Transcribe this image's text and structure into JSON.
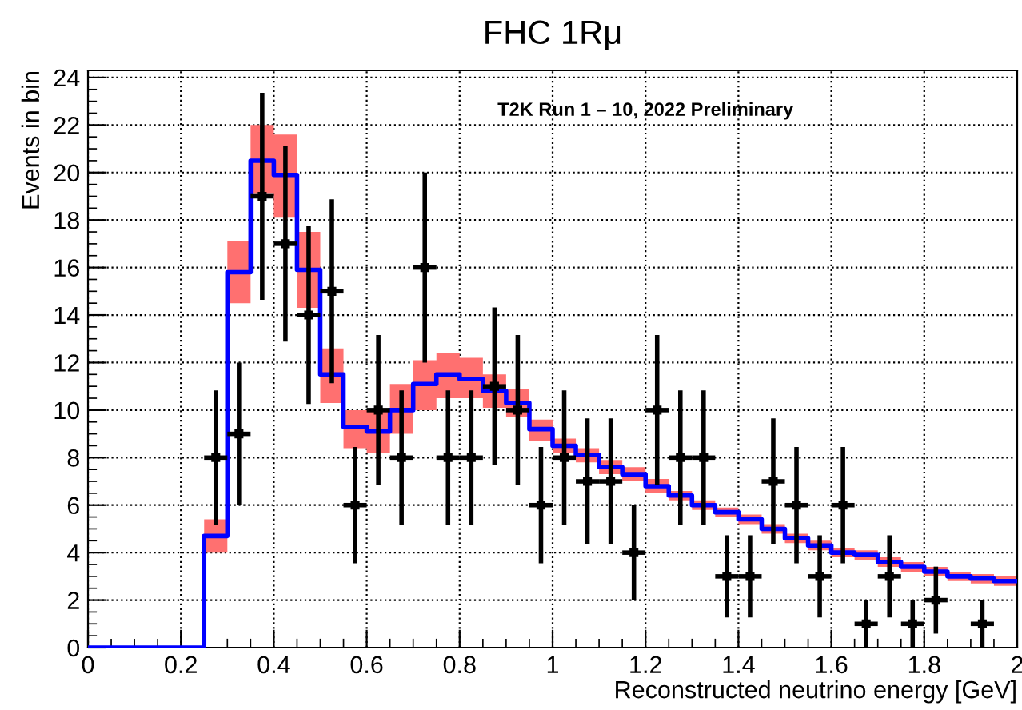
{
  "chart_data": {
    "type": "step",
    "title": "FHC 1Rμ",
    "xlabel": "Reconstructed neutrino energy [GeV]",
    "ylabel": "Events in bin",
    "annotations": [
      "T2K Run 1 – 10, 2022 Preliminary"
    ],
    "series": [
      {
        "color": "#0000ff",
        "x": [
          0,
          0.05,
          0.1,
          0.15,
          0.2,
          0.25,
          0.3,
          0.35,
          0.4,
          0.45,
          0.5,
          0.55,
          0.6,
          0.65,
          0.7,
          0.75,
          0.8,
          0.85,
          0.9,
          0.95,
          1,
          1.05,
          1.1,
          1.15,
          1.2,
          1.25,
          1.3,
          1.35,
          1.4,
          1.45,
          1.5,
          1.55,
          1.6,
          1.65,
          1.7,
          1.75,
          1.8,
          1.85,
          1.9,
          1.95,
          2
        ],
        "values": [
          0,
          0,
          0,
          0,
          0,
          4.7,
          15.8,
          20.5,
          19.9,
          15.9,
          11.5,
          9.3,
          9.1,
          10.0,
          11.1,
          11.5,
          11.3,
          10.8,
          10.3,
          9.2,
          8.5,
          8.1,
          7.6,
          7.3,
          6.8,
          6.4,
          6.0,
          5.7,
          5.4,
          5.0,
          4.6,
          4.3,
          4.0,
          3.9,
          3.6,
          3.4,
          3.2,
          3.0,
          2.9,
          2.8,
          2.8
        ],
        "lower": [
          null,
          null,
          null,
          null,
          null,
          4.0,
          14.5,
          19.1,
          18.1,
          14.3,
          10.3,
          8.4,
          8.2,
          9.0,
          10.0,
          10.5,
          10.5,
          10.1,
          9.7,
          8.7,
          8.2,
          7.8,
          7.3,
          7.0,
          6.5,
          6.2,
          5.8,
          5.5,
          5.2,
          4.8,
          4.4,
          4.1,
          3.8,
          3.7,
          3.4,
          3.2,
          3.0,
          2.8,
          2.7,
          2.6,
          2.6
        ],
        "upper": [
          null,
          null,
          null,
          null,
          null,
          5.4,
          17.1,
          22.0,
          21.6,
          17.5,
          12.6,
          10.0,
          10.0,
          11.1,
          12.1,
          12.4,
          12.2,
          11.5,
          10.9,
          9.6,
          8.8,
          8.4,
          7.9,
          7.6,
          7.1,
          6.6,
          6.2,
          5.9,
          5.6,
          5.2,
          4.8,
          4.5,
          4.2,
          4.1,
          3.8,
          3.6,
          3.4,
          3.2,
          3.1,
          3.0,
          3.0
        ]
      },
      {
        "type": "scatter",
        "color": "#000000",
        "x": [
          0.275,
          0.325,
          0.375,
          0.425,
          0.475,
          0.525,
          0.575,
          0.625,
          0.675,
          0.725,
          0.775,
          0.825,
          0.875,
          0.925,
          0.975,
          1.025,
          1.075,
          1.125,
          1.175,
          1.225,
          1.275,
          1.325,
          1.375,
          1.425,
          1.475,
          1.525,
          1.575,
          1.625,
          1.675,
          1.725,
          1.775,
          1.825,
          1.925
        ],
        "values": [
          8,
          9,
          19,
          17,
          14,
          15,
          6,
          10,
          8,
          16,
          8,
          8,
          11,
          10,
          6,
          8,
          7,
          7,
          4,
          10,
          8,
          8,
          3,
          3,
          7,
          6,
          3,
          6,
          1,
          3,
          1,
          2,
          1
        ],
        "errors": [
          2.83,
          3,
          4.36,
          4.12,
          3.74,
          3.87,
          2.45,
          3.16,
          2.83,
          4,
          2.83,
          2.83,
          3.32,
          3.16,
          2.45,
          2.83,
          2.65,
          2.65,
          2,
          3.16,
          2.83,
          2.83,
          1.73,
          1.73,
          2.65,
          2.45,
          1.73,
          2.45,
          1,
          1.73,
          1,
          1.41,
          1
        ],
        "xerrors": [
          0.025,
          0.025,
          0.025,
          0.025,
          0.025,
          0.025,
          0.025,
          0.025,
          0.025,
          0.025,
          0.025,
          0.025,
          0.025,
          0.025,
          0.025,
          0.025,
          0.025,
          0.025,
          0.025,
          0.025,
          0.025,
          0.025,
          0.025,
          0.025,
          0.025,
          0.025,
          0.025,
          0.025,
          0.025,
          0.025,
          0.025,
          0.025,
          0.025
        ]
      }
    ],
    "xlim": [
      0,
      2
    ],
    "ylim": [
      0,
      24.3
    ],
    "xticks": [
      0,
      0.2,
      0.4,
      0.6,
      0.8,
      1,
      1.2,
      1.4,
      1.6,
      1.8,
      2
    ],
    "yticks": [
      0,
      2,
      4,
      6,
      8,
      10,
      12,
      14,
      16,
      18,
      20,
      22,
      24
    ],
    "grid": true
  }
}
